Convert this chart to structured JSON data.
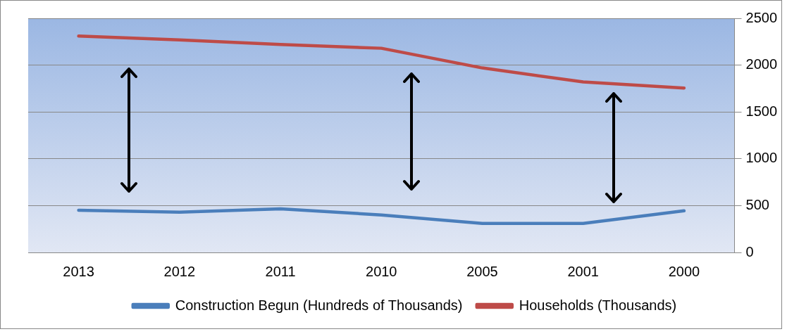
{
  "chart_data": {
    "type": "line",
    "categories": [
      "2013",
      "2012",
      "2011",
      "2010",
      "2005",
      "2001",
      "2000"
    ],
    "series": [
      {
        "name": "Construction Begun (Hundreds of Thousands)",
        "color": "#4a7ebb",
        "values": [
          450,
          430,
          465,
          400,
          310,
          310,
          445
        ]
      },
      {
        "name": "Households (Thousands)",
        "color": "#be4b48",
        "values": [
          2310,
          2270,
          2220,
          2180,
          1970,
          1820,
          1755
        ]
      }
    ],
    "ylim": [
      0,
      2500
    ],
    "yticks": [
      0,
      500,
      1000,
      1500,
      2000,
      2500
    ],
    "grid": "y",
    "legend": "bottom",
    "marker": "none",
    "line_style": "solid"
  }
}
